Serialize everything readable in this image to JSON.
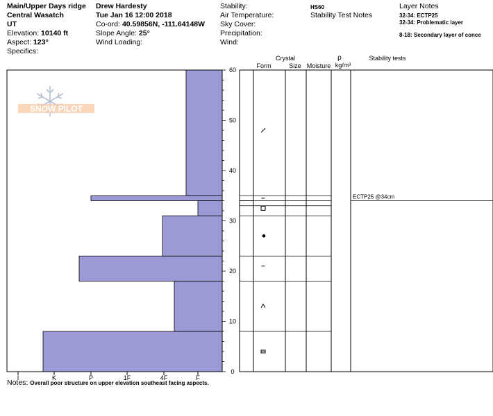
{
  "header": {
    "location": "Main/Upper Days ridge",
    "range": "Central Wasatch",
    "state": "UT",
    "elevation_label": "Elevation:",
    "elevation_value": "10140 ft",
    "aspect_label": "Aspect:",
    "aspect_value": "123°",
    "specifics_label": "Specifics:",
    "observer": "Drew Hardesty",
    "datetime": "Tue Jan 16 12:00 2018",
    "coord_label": "Co-ord:",
    "coord_value": "40.59856N, -111.64148W",
    "slope_label": "Slope Angle:",
    "slope_value": "25°",
    "wind_loading_label": "Wind Loading:",
    "stability_label": "Stability:",
    "air_temp_label": "Air Temperature:",
    "sky_cover_label": "Sky Cover:",
    "precip_label": "Precipitation:",
    "wind_label": "Wind:",
    "hs_value": "HS60",
    "stability_test_notes_label": "Stability Test Notes",
    "layer_notes_title": "Layer Notes",
    "layer_notes": [
      "32-34: ECTP25",
      "32-34: Problematic layer",
      "8-18: Secondary layer of conce"
    ]
  },
  "logo": {
    "text": "SNOW PILOT"
  },
  "table_headers": {
    "crystal": "Crystal",
    "form": "Form",
    "size": "Size",
    "moisture": "Moisture",
    "rho": "ρ",
    "density_unit": "kg/m³",
    "stability_tests": "Stability tests"
  },
  "stability_tests": [
    {
      "depth": 34,
      "label": "ECTP25 @34cm"
    }
  ],
  "notes": {
    "label": "Notes:",
    "text": "Overall poor structure on upper elevation southeast facing aspects."
  },
  "chart_data": {
    "type": "bar",
    "orientation": "horizontal-step",
    "title": "",
    "ylabel": "",
    "ylim": [
      0,
      60
    ],
    "y_ticks": [
      0,
      10,
      20,
      30,
      40,
      50,
      60
    ],
    "hardness_categories": [
      "I",
      "K",
      "P",
      "1F",
      "4F",
      "F"
    ],
    "hardness_scale_direction": "F at right edge, hardness increases to the left",
    "layers": [
      {
        "bottom": 0,
        "top": 8,
        "hardness": "K-"
      },
      {
        "bottom": 8,
        "top": 18,
        "hardness": "4F-F"
      },
      {
        "bottom": 18,
        "top": 23,
        "hardness": "P+"
      },
      {
        "bottom": 23,
        "top": 31,
        "hardness": "4F"
      },
      {
        "bottom": 31,
        "top": 34,
        "hardness": "F+"
      },
      {
        "bottom": 34,
        "top": 35,
        "hardness": "P-"
      },
      {
        "bottom": 35,
        "top": 60,
        "hardness": "F-"
      }
    ],
    "layer_boundaries": [
      0,
      8,
      18,
      23,
      31,
      33,
      34,
      35,
      60
    ],
    "grain_forms": [
      {
        "depth": 4,
        "form": "melt-freeze crust"
      },
      {
        "depth": 13,
        "form": "depth hoar"
      },
      {
        "depth": 21,
        "form": "faceted crystals"
      },
      {
        "depth": 27,
        "form": "rounded grains"
      },
      {
        "depth": 32.5,
        "form": "faceted crystals"
      },
      {
        "depth": 34.5,
        "form": "faceted crystals"
      },
      {
        "depth": 48,
        "form": "decomposing fragments"
      }
    ],
    "bar_color": "#9b9ad6",
    "grid": false
  }
}
